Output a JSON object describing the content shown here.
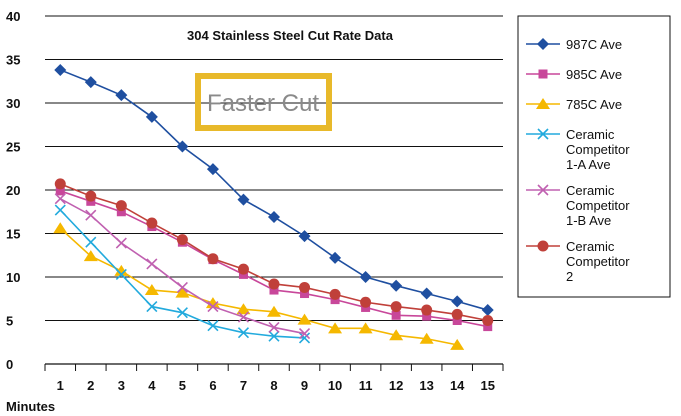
{
  "chart_data": {
    "type": "line",
    "title": "304 Stainless Steel Cut Rate Data",
    "xlabel": "Minutes",
    "ylabel": "",
    "x": [
      1,
      2,
      3,
      4,
      5,
      6,
      7,
      8,
      9,
      10,
      11,
      12,
      13,
      14,
      15
    ],
    "xlim": [
      0.5,
      15.5
    ],
    "ylim": [
      0,
      40
    ],
    "yticks": [
      0,
      5,
      10,
      15,
      20,
      25,
      30,
      35,
      40
    ],
    "grid": true,
    "legend_position": "right",
    "annotation": {
      "text": "Faster Cut",
      "color": "#e8b92a"
    },
    "series": [
      {
        "name": "987C Ave",
        "color": "#1f4fa0",
        "marker": "diamond",
        "values": [
          33.8,
          32.4,
          30.9,
          28.4,
          25.0,
          22.4,
          18.9,
          16.9,
          14.7,
          12.2,
          10.0,
          9.0,
          8.1,
          7.2,
          6.2
        ]
      },
      {
        "name": "985C Ave",
        "color": "#c8479a",
        "marker": "square",
        "values": [
          19.9,
          18.7,
          17.5,
          15.8,
          14.0,
          12.0,
          10.3,
          8.5,
          8.1,
          7.4,
          6.5,
          5.6,
          5.5,
          5.0,
          4.3
        ]
      },
      {
        "name": "785C Ave",
        "color": "#f5b800",
        "marker": "triangle",
        "values": [
          15.6,
          12.4,
          10.7,
          8.5,
          8.2,
          7.0,
          6.3,
          6.0,
          5.1,
          4.1,
          4.1,
          3.3,
          2.9,
          2.2,
          null
        ]
      },
      {
        "name": "Ceramic Competitor 1-A Ave",
        "color": "#22aadd",
        "marker": "x",
        "values": [
          17.7,
          14.0,
          10.3,
          6.6,
          5.9,
          4.4,
          3.6,
          3.2,
          3.0,
          null,
          null,
          null,
          null,
          null,
          null
        ]
      },
      {
        "name": "Ceramic Competitor 1-B Ave",
        "color": "#c060b0",
        "marker": "x",
        "values": [
          19.0,
          17.1,
          13.9,
          11.5,
          8.8,
          6.6,
          5.4,
          4.2,
          3.5,
          null,
          null,
          null,
          null,
          null,
          null
        ]
      },
      {
        "name": "Ceramic Competitor 2",
        "color": "#c0403a",
        "marker": "circle",
        "values": [
          20.7,
          19.3,
          18.2,
          16.2,
          14.3,
          12.1,
          10.9,
          9.2,
          8.8,
          8.0,
          7.1,
          6.6,
          6.2,
          5.7,
          5.0
        ]
      }
    ]
  }
}
